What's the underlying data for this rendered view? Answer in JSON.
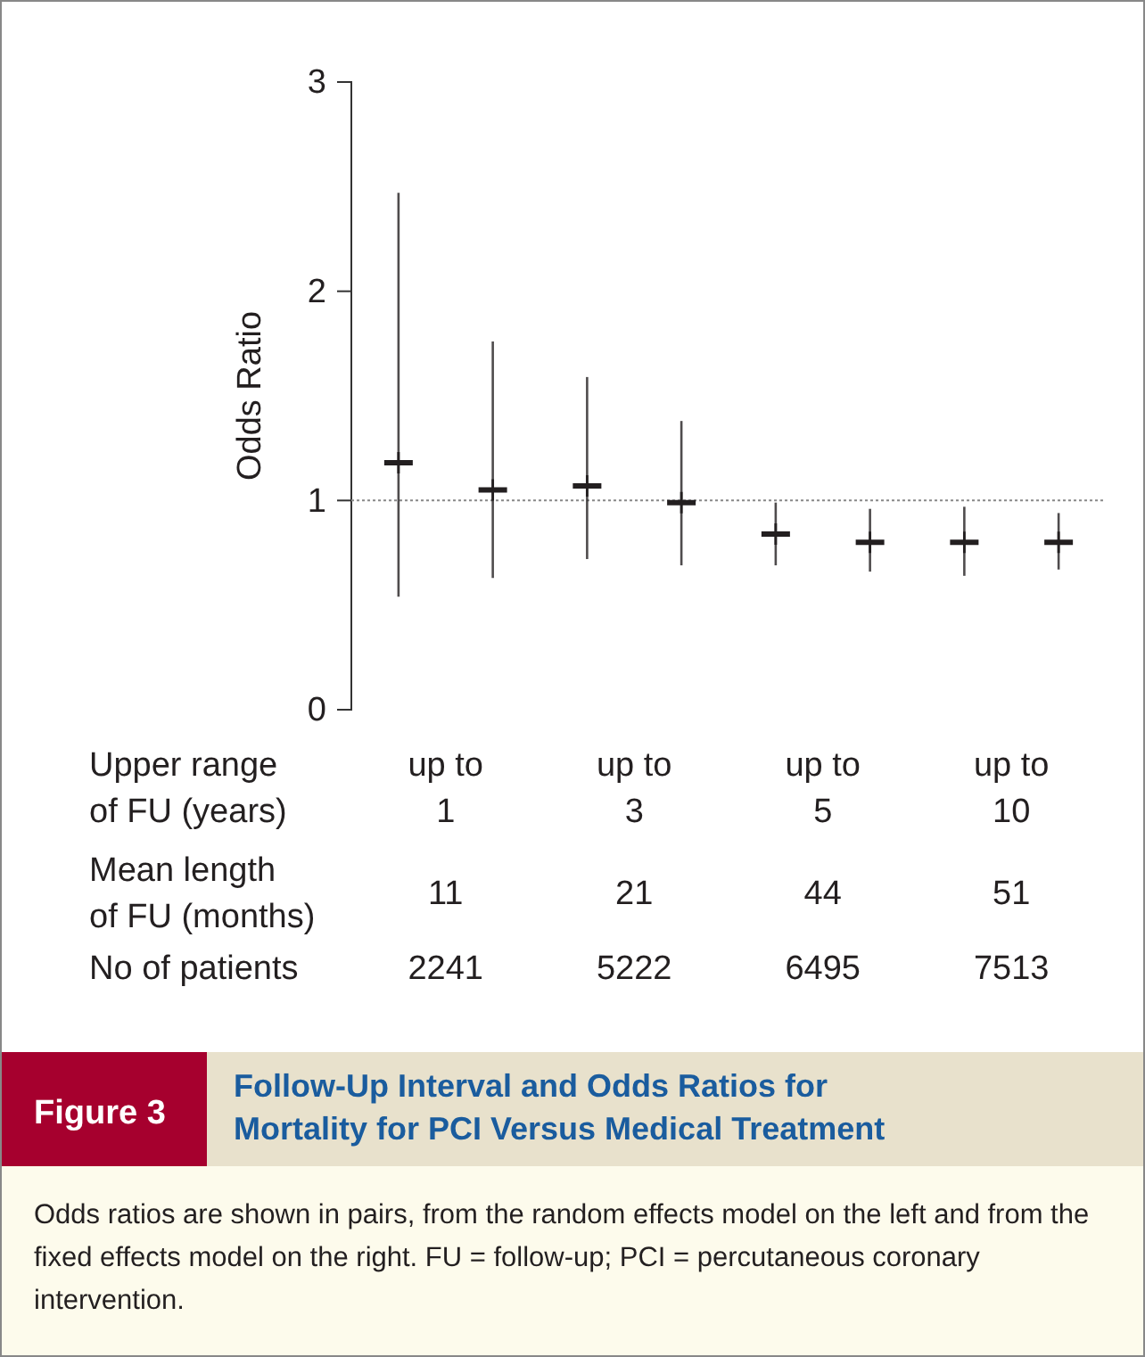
{
  "chart_data": {
    "type": "scatter",
    "title": "Follow-Up Interval and Odds Ratios for Mortality for PCI Versus Medical Treatment",
    "ylabel": "Odds Ratio",
    "categories": [
      null,
      null,
      null,
      null,
      null,
      null,
      null,
      null
    ],
    "series": [
      {
        "color": "#231f20",
        "values": [
          1.18,
          1.05,
          1.07,
          0.99,
          0.84,
          0.8,
          0.8,
          0.8
        ],
        "errors": [
          [
            0.54,
            2.47
          ],
          [
            0.63,
            1.76
          ],
          [
            0.72,
            1.59
          ],
          [
            0.69,
            1.38
          ],
          [
            0.69,
            0.99
          ],
          [
            0.66,
            0.96
          ],
          [
            0.64,
            0.97
          ],
          [
            0.67,
            0.94
          ]
        ]
      }
    ],
    "ylim": [
      0,
      3
    ],
    "yticks": [
      0,
      1,
      2,
      3
    ],
    "grid": false,
    "marker": "cross",
    "ref_lines": [
      {
        "axis": "y",
        "value": 1,
        "color": "#888888",
        "line_style": "dotted"
      }
    ],
    "annotations": [
      "Upper range\nof FU (years)",
      "Mean length\nof FU (months)",
      "No of patients",
      "Figure 3",
      "Odds ratios are shown in pairs, from the random effects model on the left and from the fixed effects model on the right. FU = follow-up; PCI = percutaneous coronary intervention.",
      "up to 1",
      "up to 3",
      "up to 5",
      "up to 10",
      "11",
      "21",
      "44",
      "51",
      "2241",
      "5222",
      "6495",
      "7513"
    ]
  }
}
